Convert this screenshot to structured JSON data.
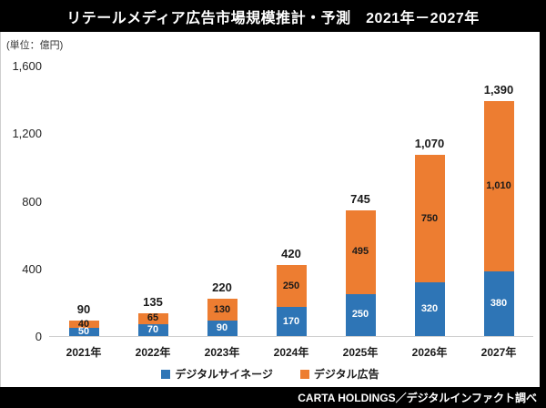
{
  "footer": {
    "source": "CARTA HOLDINGS／デジタルインファクト調べ"
  },
  "colors": {
    "digital_signage_blue": "#2E75B6",
    "digital_ad_orange": "#ED7D31",
    "banner_background": "#000000",
    "axis_line": "#D0D0D0"
  },
  "chart_data": {
    "type": "bar",
    "stacked": true,
    "title": "リテールメディア広告市場規模推計・予測　2021年－2027年",
    "unit_label": "(単位：億円)",
    "categories": [
      "2021年",
      "2022年",
      "2023年",
      "2024年",
      "2025年",
      "2026年",
      "2027年"
    ],
    "series": [
      {
        "name": "デジタルサイネージ",
        "color": "#2E75B6",
        "label_color": "#FFFFFF",
        "values": [
          50,
          70,
          90,
          170,
          250,
          320,
          380
        ]
      },
      {
        "name": "デジタル広告",
        "color": "#ED7D31",
        "label_color": "#1A1A1A",
        "values": [
          40,
          65,
          130,
          250,
          495,
          750,
          1010
        ]
      }
    ],
    "totals": [
      90,
      135,
      220,
      420,
      745,
      1070,
      1390
    ],
    "y_axis": {
      "min": 0,
      "max": 1600,
      "ticks": [
        0,
        400,
        800,
        1200,
        1600
      ]
    },
    "gridlines": false,
    "legend_position": "bottom"
  }
}
